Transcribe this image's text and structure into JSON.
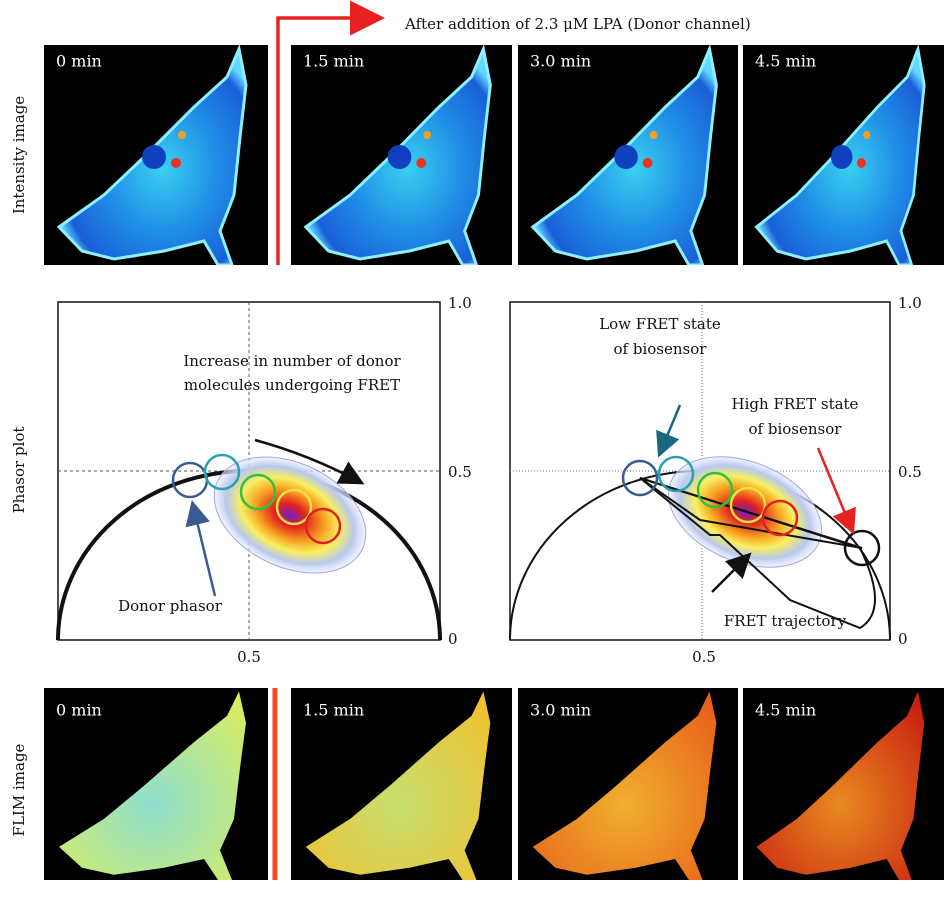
{
  "header": {
    "arrow_label": "After addition of 2.3 μM LPA (Donor channel)"
  },
  "row_labels": [
    "Intensity image",
    "Phasor plot",
    "FLIM image"
  ],
  "intensity_panels": [
    "0 min",
    "1.5 min",
    "3.0 min",
    "4.5 min"
  ],
  "flim_panels": [
    "0 min",
    "1.5 min",
    "3.0 min",
    "4.5 min"
  ],
  "phasor_left": {
    "yticks": [
      "1.0",
      "0.5",
      "0"
    ],
    "xtick": "0.5",
    "annotations": [
      {
        "lines": [
          "Increase in number of donor",
          "molecules undergoing FRET"
        ]
      },
      {
        "lines": [
          "Donor phasor"
        ]
      }
    ]
  },
  "phasor_right": {
    "yticks": [
      "1.0",
      "0.5",
      "0"
    ],
    "xtick": "0.5",
    "annotations": [
      {
        "lines": [
          "Low FRET state",
          "of biosensor"
        ]
      },
      {
        "lines": [
          "High FRET state",
          "of biosensor"
        ]
      },
      {
        "lines": [
          "FRET trajectory"
        ]
      }
    ]
  }
}
